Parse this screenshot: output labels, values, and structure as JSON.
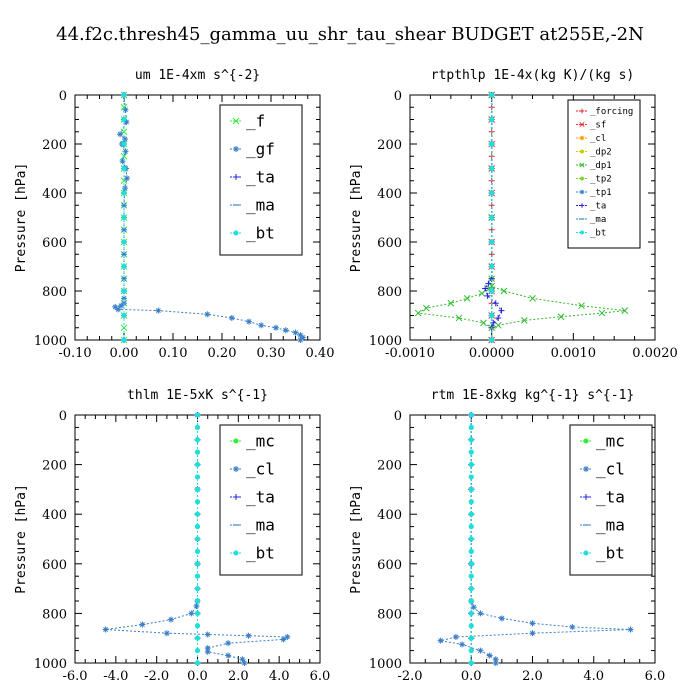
{
  "figure": {
    "title": "44.f2c.thresh45_gamma_uu_shr_tau_shear  BUDGET at255E,-2N"
  },
  "chart_data": [
    {
      "type": "line",
      "title": "um   1E-4xm  s^{-2}",
      "ylabel": "Pressure [hPa]",
      "xlim": [
        -0.1,
        0.4
      ],
      "ylim": [
        1000,
        0
      ],
      "xticks": [
        "-0.10",
        "0.00",
        "0.10",
        "0.20",
        "0.30",
        "0.40"
      ],
      "yticks": [
        "0",
        "200",
        "400",
        "600",
        "800",
        "1000"
      ],
      "legend": "top-right",
      "legend_size": "large",
      "series": [
        {
          "name": "_f",
          "color": "#33ee33",
          "marker": "x",
          "x": [
            0,
            0,
            0,
            0,
            0,
            0,
            0,
            0,
            0,
            0,
            0,
            0,
            0,
            0,
            0,
            0,
            0,
            0,
            0,
            0,
            0
          ],
          "y": [
            0,
            50,
            100,
            150,
            200,
            250,
            300,
            350,
            400,
            450,
            500,
            550,
            600,
            650,
            700,
            750,
            800,
            850,
            900,
            950,
            1000
          ]
        },
        {
          "name": "_gf",
          "color": "#3a7ec8",
          "marker": "*",
          "x": [
            0,
            0.003,
            0.005,
            -0.008,
            0.002,
            -0.004,
            0.003,
            -0.003,
            0.004,
            0.006,
            0.002,
            0,
            0,
            0,
            0,
            0,
            0,
            0,
            -0.006,
            -0.018,
            -0.012,
            0.07,
            0.17,
            0.22,
            0.255,
            0.28,
            0.31,
            0.33,
            0.35,
            0.36,
            0.365,
            0.36
          ],
          "y": [
            0,
            60,
            110,
            160,
            180,
            200,
            230,
            270,
            300,
            340,
            380,
            450,
            550,
            650,
            750,
            800,
            830,
            850,
            860,
            865,
            875,
            880,
            895,
            910,
            925,
            940,
            950,
            960,
            970,
            980,
            990,
            1000
          ]
        },
        {
          "name": "_ta",
          "color": "#2222dd",
          "marker": "+",
          "x": [
            0,
            0,
            0,
            0,
            0,
            0,
            0,
            0,
            0,
            0,
            0
          ],
          "y": [
            0,
            100,
            200,
            300,
            400,
            500,
            600,
            700,
            800,
            900,
            1000
          ]
        },
        {
          "name": "_ma",
          "color": "#3388bb",
          "marker": "-",
          "x": [
            0,
            0,
            0,
            0,
            0,
            0,
            0,
            0,
            0,
            0,
            0
          ],
          "y": [
            0,
            100,
            200,
            300,
            400,
            500,
            600,
            700,
            800,
            900,
            1000
          ]
        },
        {
          "name": "_bt",
          "color": "#22dddd",
          "marker": "o",
          "x": [
            0,
            0,
            0,
            0,
            0,
            0,
            0,
            0,
            0,
            0,
            0
          ],
          "y": [
            0,
            100,
            200,
            300,
            400,
            500,
            600,
            700,
            800,
            900,
            1000
          ]
        }
      ]
    },
    {
      "type": "line",
      "title": "rtpthlp   1E-4x(kg K)/(kg s)",
      "ylabel": "Pressure [hPa]",
      "xlim": [
        -0.001,
        0.002
      ],
      "ylim": [
        1000,
        0
      ],
      "xticks": [
        "-0.0010",
        "0.0000",
        "0.0010",
        "0.0020"
      ],
      "yticks": [
        "0",
        "200",
        "400",
        "600",
        "800",
        "1000"
      ],
      "legend": "top-right",
      "legend_size": "small",
      "series": [
        {
          "name": "_forcing",
          "color": "#ee2222",
          "marker": "+",
          "x": [
            0,
            0,
            0,
            0,
            0,
            0,
            0,
            0,
            0,
            0,
            0,
            0,
            0,
            0,
            0,
            0,
            0,
            0,
            0,
            0,
            0
          ],
          "y": [
            0,
            50,
            100,
            150,
            200,
            250,
            300,
            350,
            400,
            450,
            500,
            550,
            600,
            650,
            700,
            750,
            800,
            850,
            900,
            950,
            1000
          ]
        },
        {
          "name": "_sf",
          "color": "#ee3333",
          "marker": "x",
          "x": [
            0,
            0,
            0,
            0,
            0,
            0,
            0,
            0,
            0,
            0,
            0
          ],
          "y": [
            0,
            100,
            200,
            300,
            400,
            500,
            600,
            700,
            800,
            900,
            1000
          ]
        },
        {
          "name": "_cl",
          "color": "#ff9900",
          "marker": "*",
          "x": [
            0,
            0,
            0,
            0,
            0,
            0,
            0,
            0,
            0,
            0,
            0
          ],
          "y": [
            0,
            100,
            200,
            300,
            400,
            500,
            600,
            700,
            800,
            900,
            1000
          ]
        },
        {
          "name": "_dp2",
          "color": "#cccc00",
          "marker": "o",
          "x": [
            0,
            0,
            0,
            0,
            0,
            0,
            0,
            0,
            0,
            0,
            0
          ],
          "y": [
            0,
            100,
            200,
            300,
            400,
            500,
            600,
            700,
            800,
            900,
            1000
          ]
        },
        {
          "name": "_dp1",
          "color": "#33bb33",
          "marker": "x",
          "x": [
            0,
            0,
            0,
            -3e-05,
            -0.00012,
            -0.0003,
            -0.0005,
            -0.0008,
            -0.0009,
            -0.0004,
            -0.0001,
            0,
            8e-05,
            0.0004,
            0.00085,
            0.00135,
            0.00163,
            0.0011,
            0.0005,
            0.00015,
            0
          ],
          "y": [
            0,
            500,
            750,
            790,
            810,
            830,
            850,
            870,
            890,
            910,
            930,
            950,
            940,
            920,
            905,
            890,
            880,
            860,
            830,
            800,
            780
          ]
        },
        {
          "name": "_tp2",
          "color": "#88cc33",
          "marker": "*",
          "x": [
            0,
            0,
            0,
            0,
            0,
            0,
            0,
            0,
            0,
            0,
            0
          ],
          "y": [
            0,
            100,
            200,
            300,
            400,
            500,
            600,
            700,
            800,
            900,
            1000
          ]
        },
        {
          "name": "_tp1",
          "color": "#3a7ec8",
          "marker": "*",
          "x": [
            0,
            0,
            0,
            0,
            0,
            0,
            0,
            0,
            0,
            0,
            0
          ],
          "y": [
            0,
            100,
            200,
            300,
            400,
            500,
            600,
            700,
            800,
            900,
            1000
          ]
        },
        {
          "name": "_ta",
          "color": "#2222dd",
          "marker": "+",
          "x": [
            0,
            0,
            -4e-05,
            -8e-05,
            -5e-05,
            5e-05,
            0.00012,
            8e-05,
            2e-05,
            0
          ],
          "y": [
            0,
            750,
            770,
            790,
            820,
            850,
            880,
            910,
            930,
            950
          ]
        },
        {
          "name": "_ma",
          "color": "#3388bb",
          "marker": "-",
          "x": [
            0,
            0,
            0,
            0,
            0,
            0,
            0,
            0,
            0,
            0,
            0
          ],
          "y": [
            0,
            100,
            200,
            300,
            400,
            500,
            600,
            700,
            800,
            900,
            1000
          ]
        },
        {
          "name": "_bt",
          "color": "#22dddd",
          "marker": "o",
          "x": [
            0,
            0,
            0,
            0,
            0,
            0,
            0,
            0,
            0,
            0,
            0
          ],
          "y": [
            0,
            100,
            200,
            300,
            400,
            500,
            600,
            700,
            800,
            900,
            1000
          ]
        }
      ]
    },
    {
      "type": "line",
      "title": "thlm   1E-5xK  s^{-1}",
      "ylabel": "Pressure [hPa]",
      "xlim": [
        -6,
        6
      ],
      "ylim": [
        1000,
        0
      ],
      "xticks": [
        "-6.0",
        "-4.0",
        "-2.0",
        "0.0",
        "2.0",
        "4.0",
        "6.0"
      ],
      "yticks": [
        "0",
        "200",
        "400",
        "600",
        "800",
        "1000"
      ],
      "legend": "top-right",
      "legend_size": "large",
      "series": [
        {
          "name": "_mc",
          "color": "#33ee33",
          "marker": "o",
          "x": [
            0,
            0,
            0,
            0,
            0,
            0,
            0,
            0,
            0,
            0,
            0,
            0,
            0,
            0,
            0,
            0,
            0,
            0,
            0,
            0,
            0
          ],
          "y": [
            0,
            50,
            100,
            150,
            200,
            250,
            300,
            350,
            400,
            450,
            500,
            550,
            600,
            650,
            700,
            750,
            800,
            850,
            900,
            950,
            1000
          ]
        },
        {
          "name": "_cl",
          "color": "#3a7ec8",
          "marker": "*",
          "x": [
            0,
            0,
            0,
            0,
            -0.05,
            -0.3,
            -1.3,
            -2.7,
            -4.5,
            -1.5,
            0.5,
            2.5,
            4.4,
            4.2,
            1.5,
            0.5,
            0.5,
            1.5,
            2.2,
            2.3
          ],
          "y": [
            0,
            300,
            600,
            750,
            770,
            800,
            825,
            845,
            865,
            880,
            885,
            890,
            895,
            905,
            920,
            940,
            955,
            970,
            985,
            1000
          ]
        },
        {
          "name": "_ta",
          "color": "#2222dd",
          "marker": "+",
          "x": [
            0,
            0,
            0,
            0,
            0,
            0,
            0,
            0,
            0,
            0,
            0
          ],
          "y": [
            0,
            100,
            200,
            300,
            400,
            500,
            600,
            700,
            800,
            900,
            1000
          ]
        },
        {
          "name": "_ma",
          "color": "#3388bb",
          "marker": "-",
          "x": [
            0,
            0,
            0,
            0,
            0,
            0,
            0,
            0,
            0,
            0,
            0
          ],
          "y": [
            0,
            100,
            200,
            300,
            400,
            500,
            600,
            700,
            800,
            900,
            1000
          ]
        },
        {
          "name": "_bt",
          "color": "#22dddd",
          "marker": "o",
          "x": [
            0,
            0,
            0,
            0,
            0,
            0,
            0,
            0,
            0,
            0,
            0,
            0,
            0,
            0,
            0,
            0,
            0,
            0,
            0,
            0,
            0
          ],
          "y": [
            0,
            50,
            100,
            150,
            200,
            250,
            300,
            350,
            400,
            450,
            500,
            550,
            600,
            650,
            700,
            750,
            800,
            850,
            900,
            950,
            1000
          ]
        }
      ]
    },
    {
      "type": "line",
      "title": "rtm   1E-8xkg  kg^{-1} s^{-1}",
      "ylabel": "Pressure [hPa]",
      "xlim": [
        -2,
        6
      ],
      "ylim": [
        1000,
        0
      ],
      "xticks": [
        "-2.0",
        "0.0",
        "2.0",
        "4.0",
        "6.0"
      ],
      "yticks": [
        "0",
        "200",
        "400",
        "600",
        "800",
        "1000"
      ],
      "legend": "top-right",
      "legend_size": "large",
      "series": [
        {
          "name": "_mc",
          "color": "#33ee33",
          "marker": "o",
          "x": [
            0,
            0,
            0,
            0,
            0,
            0,
            0,
            0,
            0,
            0,
            0,
            0,
            0,
            0,
            0,
            0,
            0,
            0,
            0,
            0,
            0
          ],
          "y": [
            0,
            50,
            100,
            150,
            200,
            250,
            300,
            350,
            400,
            450,
            500,
            550,
            600,
            650,
            700,
            750,
            800,
            850,
            900,
            950,
            1000
          ]
        },
        {
          "name": "_cl",
          "color": "#3a7ec8",
          "marker": "*",
          "x": [
            0,
            0,
            0,
            0,
            0.08,
            0.3,
            1.0,
            2.0,
            3.3,
            5.2,
            2.0,
            -0.5,
            -1.0,
            -0.3,
            0.3,
            0.6,
            0.8,
            0.8
          ],
          "y": [
            0,
            300,
            600,
            750,
            775,
            800,
            820,
            840,
            855,
            865,
            880,
            895,
            910,
            925,
            950,
            970,
            985,
            1000
          ]
        },
        {
          "name": "_ta",
          "color": "#2222dd",
          "marker": "+",
          "x": [
            0,
            0,
            0,
            0,
            0,
            0,
            0,
            0,
            0,
            0,
            0
          ],
          "y": [
            0,
            100,
            200,
            300,
            400,
            500,
            600,
            700,
            800,
            900,
            1000
          ]
        },
        {
          "name": "_ma",
          "color": "#3388bb",
          "marker": "-",
          "x": [
            0,
            0,
            0,
            0,
            0,
            0,
            0,
            0,
            0,
            0,
            0
          ],
          "y": [
            0,
            100,
            200,
            300,
            400,
            500,
            600,
            700,
            800,
            900,
            1000
          ]
        },
        {
          "name": "_bt",
          "color": "#22dddd",
          "marker": "o",
          "x": [
            0,
            0,
            0,
            0,
            0,
            0,
            0,
            0,
            0,
            0,
            0,
            0,
            0,
            0,
            0,
            0,
            0,
            0,
            0,
            0,
            0
          ],
          "y": [
            0,
            50,
            100,
            150,
            200,
            250,
            300,
            350,
            400,
            450,
            500,
            550,
            600,
            650,
            700,
            750,
            800,
            850,
            900,
            950,
            1000
          ]
        }
      ]
    }
  ]
}
